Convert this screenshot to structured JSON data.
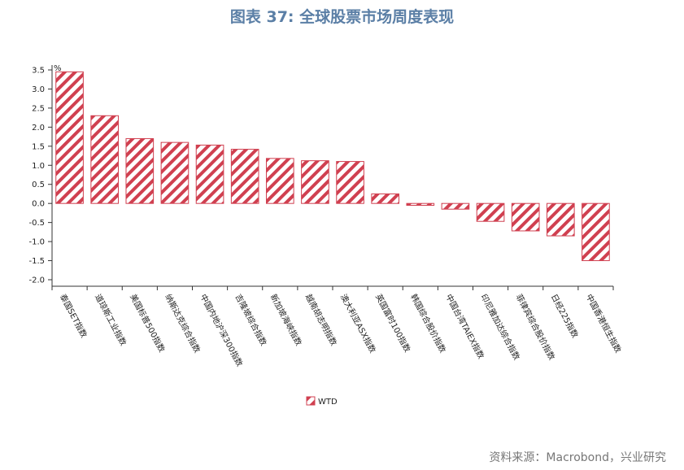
{
  "title": "图表 37: 全球股票市场周度表现",
  "source": "资料来源：Macrobond，兴业研究",
  "colors": {
    "bar": "#d04050",
    "title": "#5b7fa6"
  },
  "chart_data": {
    "type": "bar",
    "unit": "%",
    "categories": [
      "泰国SET指数",
      "道琼斯工业指数",
      "美国标普500指数",
      "纳斯达克综合指数",
      "中国内地沪深300指数",
      "吉隆坡综合指数",
      "新加坡海峡指数",
      "越南胡志明指数",
      "澳大利亚ASX指数",
      "英国富时100指数",
      "韩国综合股价指数",
      "中国台湾TAIEX指数",
      "印尼雅加达综合指数",
      "菲律宾综合股价指数",
      "日经225指数",
      "中国香港恒生指数"
    ],
    "series": [
      {
        "name": "WTD",
        "values": [
          3.45,
          2.3,
          1.7,
          1.6,
          1.53,
          1.42,
          1.18,
          1.12,
          1.1,
          0.25,
          -0.05,
          -0.15,
          -0.47,
          -0.72,
          -0.85,
          -1.5
        ]
      }
    ],
    "yticks": [
      "3.5",
      "3.0",
      "2.5",
      "2.0",
      "1.5",
      "1.0",
      "0.5",
      "0.0",
      "-0.5",
      "-1.0",
      "-1.5",
      "-2.0"
    ],
    "ylim": [
      -2.0,
      3.5
    ],
    "grid": false,
    "legend": "bottom-center"
  }
}
